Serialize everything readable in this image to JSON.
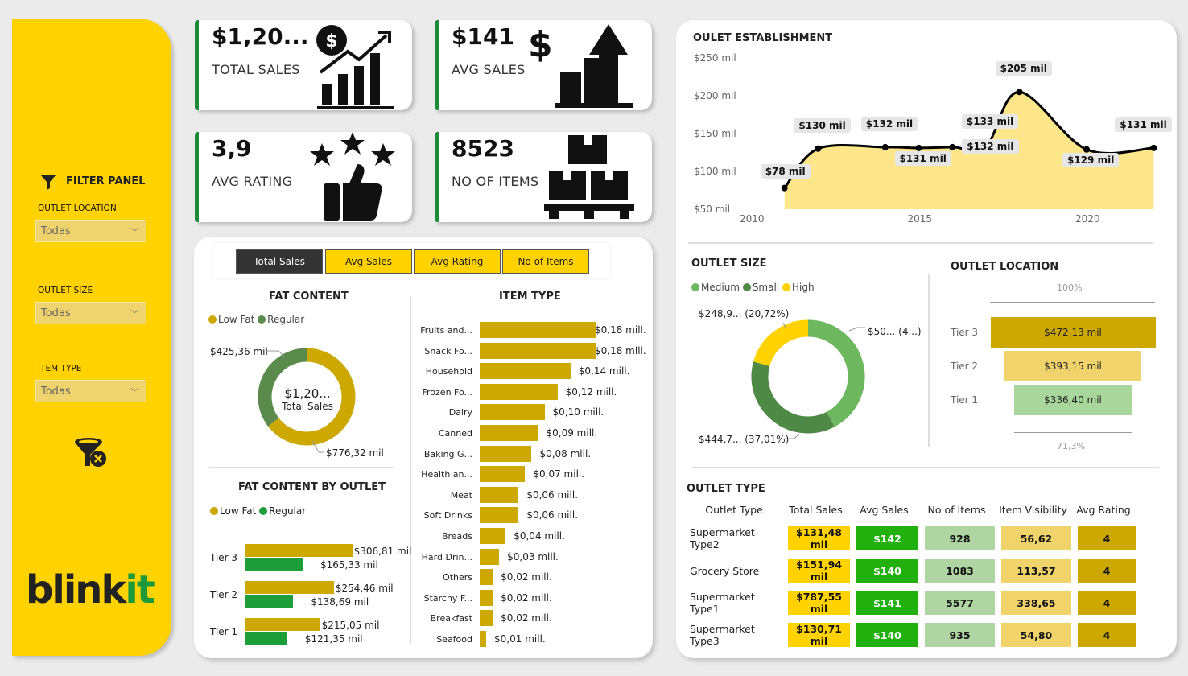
{
  "filter_panel": {
    "title": "FILTER PANEL",
    "filters": [
      {
        "label": "OUTLET LOCATION",
        "value": "Todas"
      },
      {
        "label": "OUTLET SIZE",
        "value": "Todas"
      },
      {
        "label": "ITEM TYPE",
        "value": "Todas"
      }
    ],
    "logo_main": "blink",
    "logo_accent": "it"
  },
  "kpis": [
    {
      "value": "$1,20...",
      "label": "TOTAL SALES",
      "icon": "sales-growth-icon"
    },
    {
      "value": "$141",
      "label": "AVG SALES",
      "icon": "dollar-bars-icon"
    },
    {
      "value": "3,9",
      "label": "AVG RATING",
      "icon": "stars-thumbs-up-icon"
    },
    {
      "value": "8523",
      "label": "NO OF ITEMS",
      "icon": "boxes-pallet-icon"
    }
  ],
  "tabs": [
    "Total Sales",
    "Avg Sales",
    "Avg Rating",
    "No of Items"
  ],
  "colors": {
    "yellow": "#FFD200",
    "gold": "#CCA800",
    "green": "#1E9E3A",
    "dark_green": "#5A8A4C",
    "light_green": "#6DB85E"
  },
  "chart_data": [
    {
      "type": "pie",
      "title": "FAT CONTENT",
      "center_value": "$1,20...",
      "center_label": "Total Sales",
      "labels": [
        "Low Fat",
        "Regular"
      ],
      "values": [
        776.32,
        425.36
      ],
      "value_labels": [
        "$776,32 mil",
        "$425,36 mil"
      ],
      "colors": [
        "#CCA800",
        "#5A8A4C"
      ]
    },
    {
      "type": "bar",
      "title": "FAT CONTENT BY OUTLET",
      "categories": [
        "Tier 3",
        "Tier 2",
        "Tier 1"
      ],
      "series": [
        {
          "name": "Low Fat",
          "values": [
            306.81,
            254.46,
            215.05
          ],
          "labels": [
            "$306,81 mil",
            "$254,46 mil",
            "$215,05 mil"
          ],
          "color": "#CCA800"
        },
        {
          "name": "Regular",
          "values": [
            165.33,
            138.69,
            121.35
          ],
          "labels": [
            "$165,33 mil",
            "$138,69 mil",
            "$121,35 mil"
          ],
          "color": "#1E9E3A"
        }
      ]
    },
    {
      "type": "bar",
      "title": "ITEM TYPE",
      "categories": [
        "Fruits and...",
        "Snack Fo...",
        "Household",
        "Frozen Fo...",
        "Dairy",
        "Canned",
        "Baking G...",
        "Health an...",
        "Meat",
        "Soft Drinks",
        "Breads",
        "Hard Drin...",
        "Others",
        "Starchy F...",
        "Breakfast",
        "Seafood"
      ],
      "values": [
        0.18,
        0.18,
        0.14,
        0.12,
        0.1,
        0.09,
        0.08,
        0.07,
        0.06,
        0.06,
        0.04,
        0.03,
        0.02,
        0.02,
        0.02,
        0.01
      ],
      "labels": [
        "$0,18 mill.",
        "$0,18 mill.",
        "$0,14 mill.",
        "$0,12 mill.",
        "$0,10 mill.",
        "$0,09 mill.",
        "$0,08 mill.",
        "$0,07 mill.",
        "$0,06 mill.",
        "$0,06 mill.",
        "$0,04 mill.",
        "$0,03 mill.",
        "$0,02 mill.",
        "$0,02 mill.",
        "$0,02 mill.",
        "$0,01 mill."
      ]
    },
    {
      "type": "area",
      "title": "OULET ESTABLISHMENT",
      "x": [
        2011,
        2012,
        2014,
        2015,
        2016,
        2017,
        2018,
        2020,
        2022
      ],
      "y": [
        78,
        130,
        132,
        131,
        132,
        133,
        205,
        129,
        131
      ],
      "labels": [
        "$78 mil",
        "$130 mil",
        "$132 mil",
        "$131 mil",
        "$132 mil",
        "$133 mil",
        "$205 mil",
        "$129 mil",
        "$131 mil"
      ],
      "yticks": [
        "$250 mil",
        "$200 mil",
        "$150 mil",
        "$100 mil",
        "$50 mil"
      ],
      "xticks": [
        "2010",
        "2015",
        "2020"
      ],
      "ylim": [
        50,
        250
      ],
      "xlim": [
        2010,
        2022
      ]
    },
    {
      "type": "pie",
      "title": "OUTLET SIZE",
      "labels": [
        "Medium",
        "Small",
        "High"
      ],
      "values": [
        507.9,
        444.7,
        248.9
      ],
      "value_labels": [
        "$50... (4...)",
        "$444,7... (37,01%)",
        "$248,9... (20,72%)"
      ],
      "colors": [
        "#6DB85E",
        "#4E8A45",
        "#FFD200"
      ]
    },
    {
      "type": "bar",
      "title": "OUTLET LOCATION",
      "categories": [
        "Tier 3",
        "Tier 2",
        "Tier 1"
      ],
      "values": [
        472.13,
        393.15,
        336.4
      ],
      "labels": [
        "$472,13 mil",
        "$393,15 mil",
        "$336,40 mil"
      ],
      "colors": [
        "#CCA800",
        "#F0D36A",
        "#A9D69A"
      ],
      "top_pct": "100%",
      "bottom_pct": "71,3%"
    }
  ],
  "outlet_type": {
    "title": "OUTLET TYPE",
    "columns": [
      "Outlet Type",
      "Total Sales",
      "Avg Sales",
      "No of Items",
      "Item Visibility",
      "Avg Rating"
    ],
    "rows": [
      [
        "Supermarket Type2",
        "$131,48 mil",
        "$142",
        "928",
        "56,62",
        "4"
      ],
      [
        "Grocery Store",
        "$151,94 mil",
        "$140",
        "1083",
        "113,57",
        "4"
      ],
      [
        "Supermarket Type1",
        "$787,55 mil",
        "$141",
        "5577",
        "338,65",
        "4"
      ],
      [
        "Supermarket Type3",
        "$130,71 mil",
        "$140",
        "935",
        "54,80",
        "4"
      ]
    ]
  }
}
